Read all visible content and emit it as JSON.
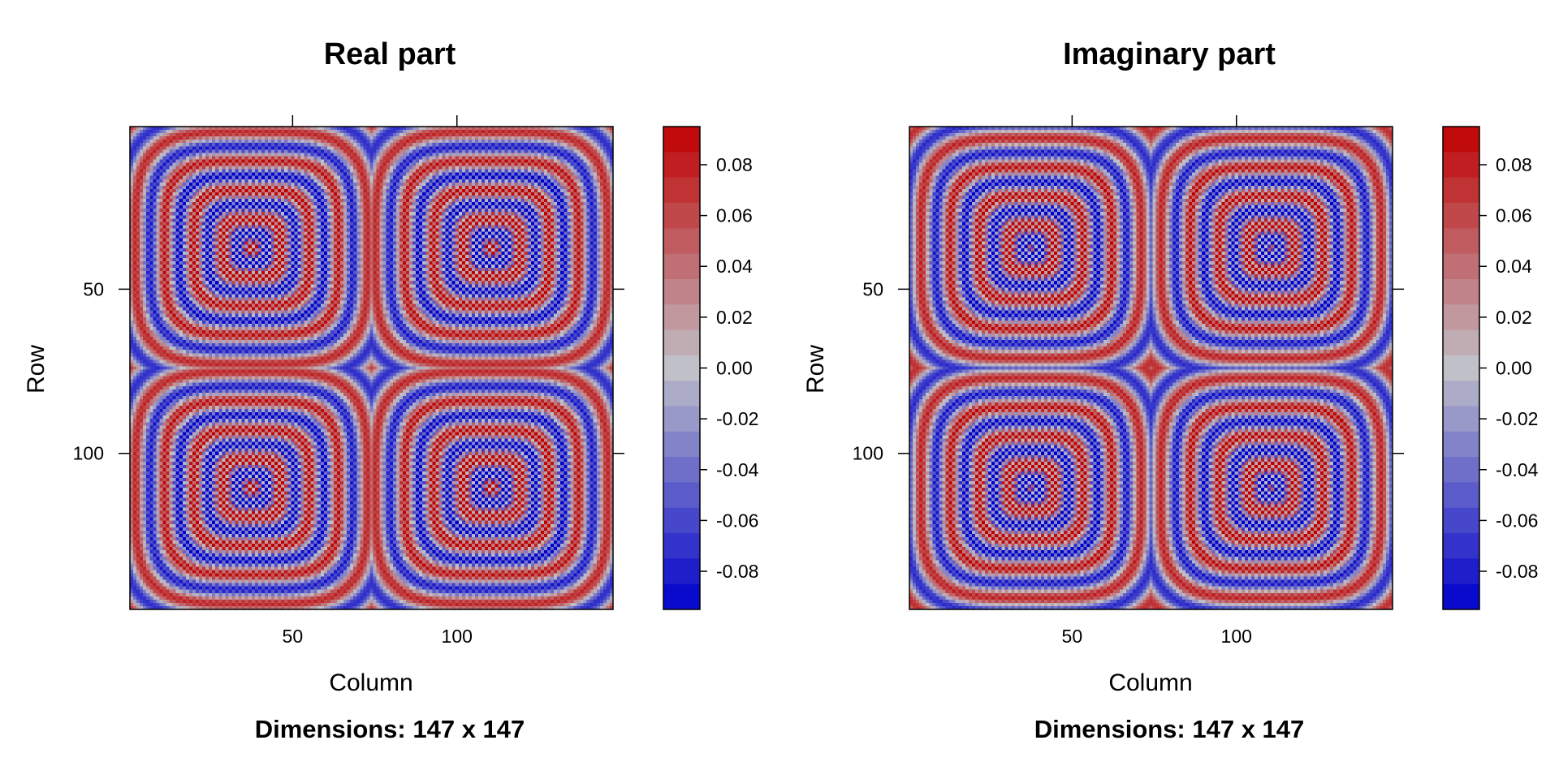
{
  "chart_data": [
    {
      "type": "heatmap",
      "title": "Real part",
      "xlabel": "Column",
      "ylabel": "Row",
      "subtitle": "Dimensions: 147 x 147",
      "dimensions": [
        147,
        147
      ],
      "x_ticks": [
        50,
        100
      ],
      "y_ticks": [
        50,
        100
      ],
      "xlim": [
        1,
        147
      ],
      "ylim": [
        1,
        147
      ],
      "y_reversed": true,
      "colorbar": {
        "range": [
          -0.095,
          0.095
        ],
        "ticks": [
          0.08,
          0.06,
          0.04,
          0.02,
          0.0,
          -0.02,
          -0.04,
          -0.06,
          -0.08
        ],
        "tick_labels": [
          "0.08",
          "0.06",
          "0.04",
          "0.02",
          "0.00",
          "-0.02",
          "-0.04",
          "-0.06",
          "-0.08"
        ],
        "low_color": "#0000CC",
        "mid_color": "#C0C0C8",
        "high_color": "#C00000"
      }
    },
    {
      "type": "heatmap",
      "title": "Imaginary part",
      "xlabel": "Column",
      "ylabel": "Row",
      "subtitle": "Dimensions: 147 x 147",
      "dimensions": [
        147,
        147
      ],
      "x_ticks": [
        50,
        100
      ],
      "y_ticks": [
        50,
        100
      ],
      "xlim": [
        1,
        147
      ],
      "ylim": [
        1,
        147
      ],
      "y_reversed": true,
      "colorbar": {
        "range": [
          -0.095,
          0.095
        ],
        "ticks": [
          0.08,
          0.06,
          0.04,
          0.02,
          0.0,
          -0.02,
          -0.04,
          -0.06,
          -0.08
        ],
        "tick_labels": [
          "0.08",
          "0.06",
          "0.04",
          "0.02",
          "0.00",
          "-0.02",
          "-0.04",
          "-0.06",
          "-0.08"
        ],
        "low_color": "#0000CC",
        "mid_color": "#C0C0C8",
        "high_color": "#C00000"
      }
    }
  ]
}
